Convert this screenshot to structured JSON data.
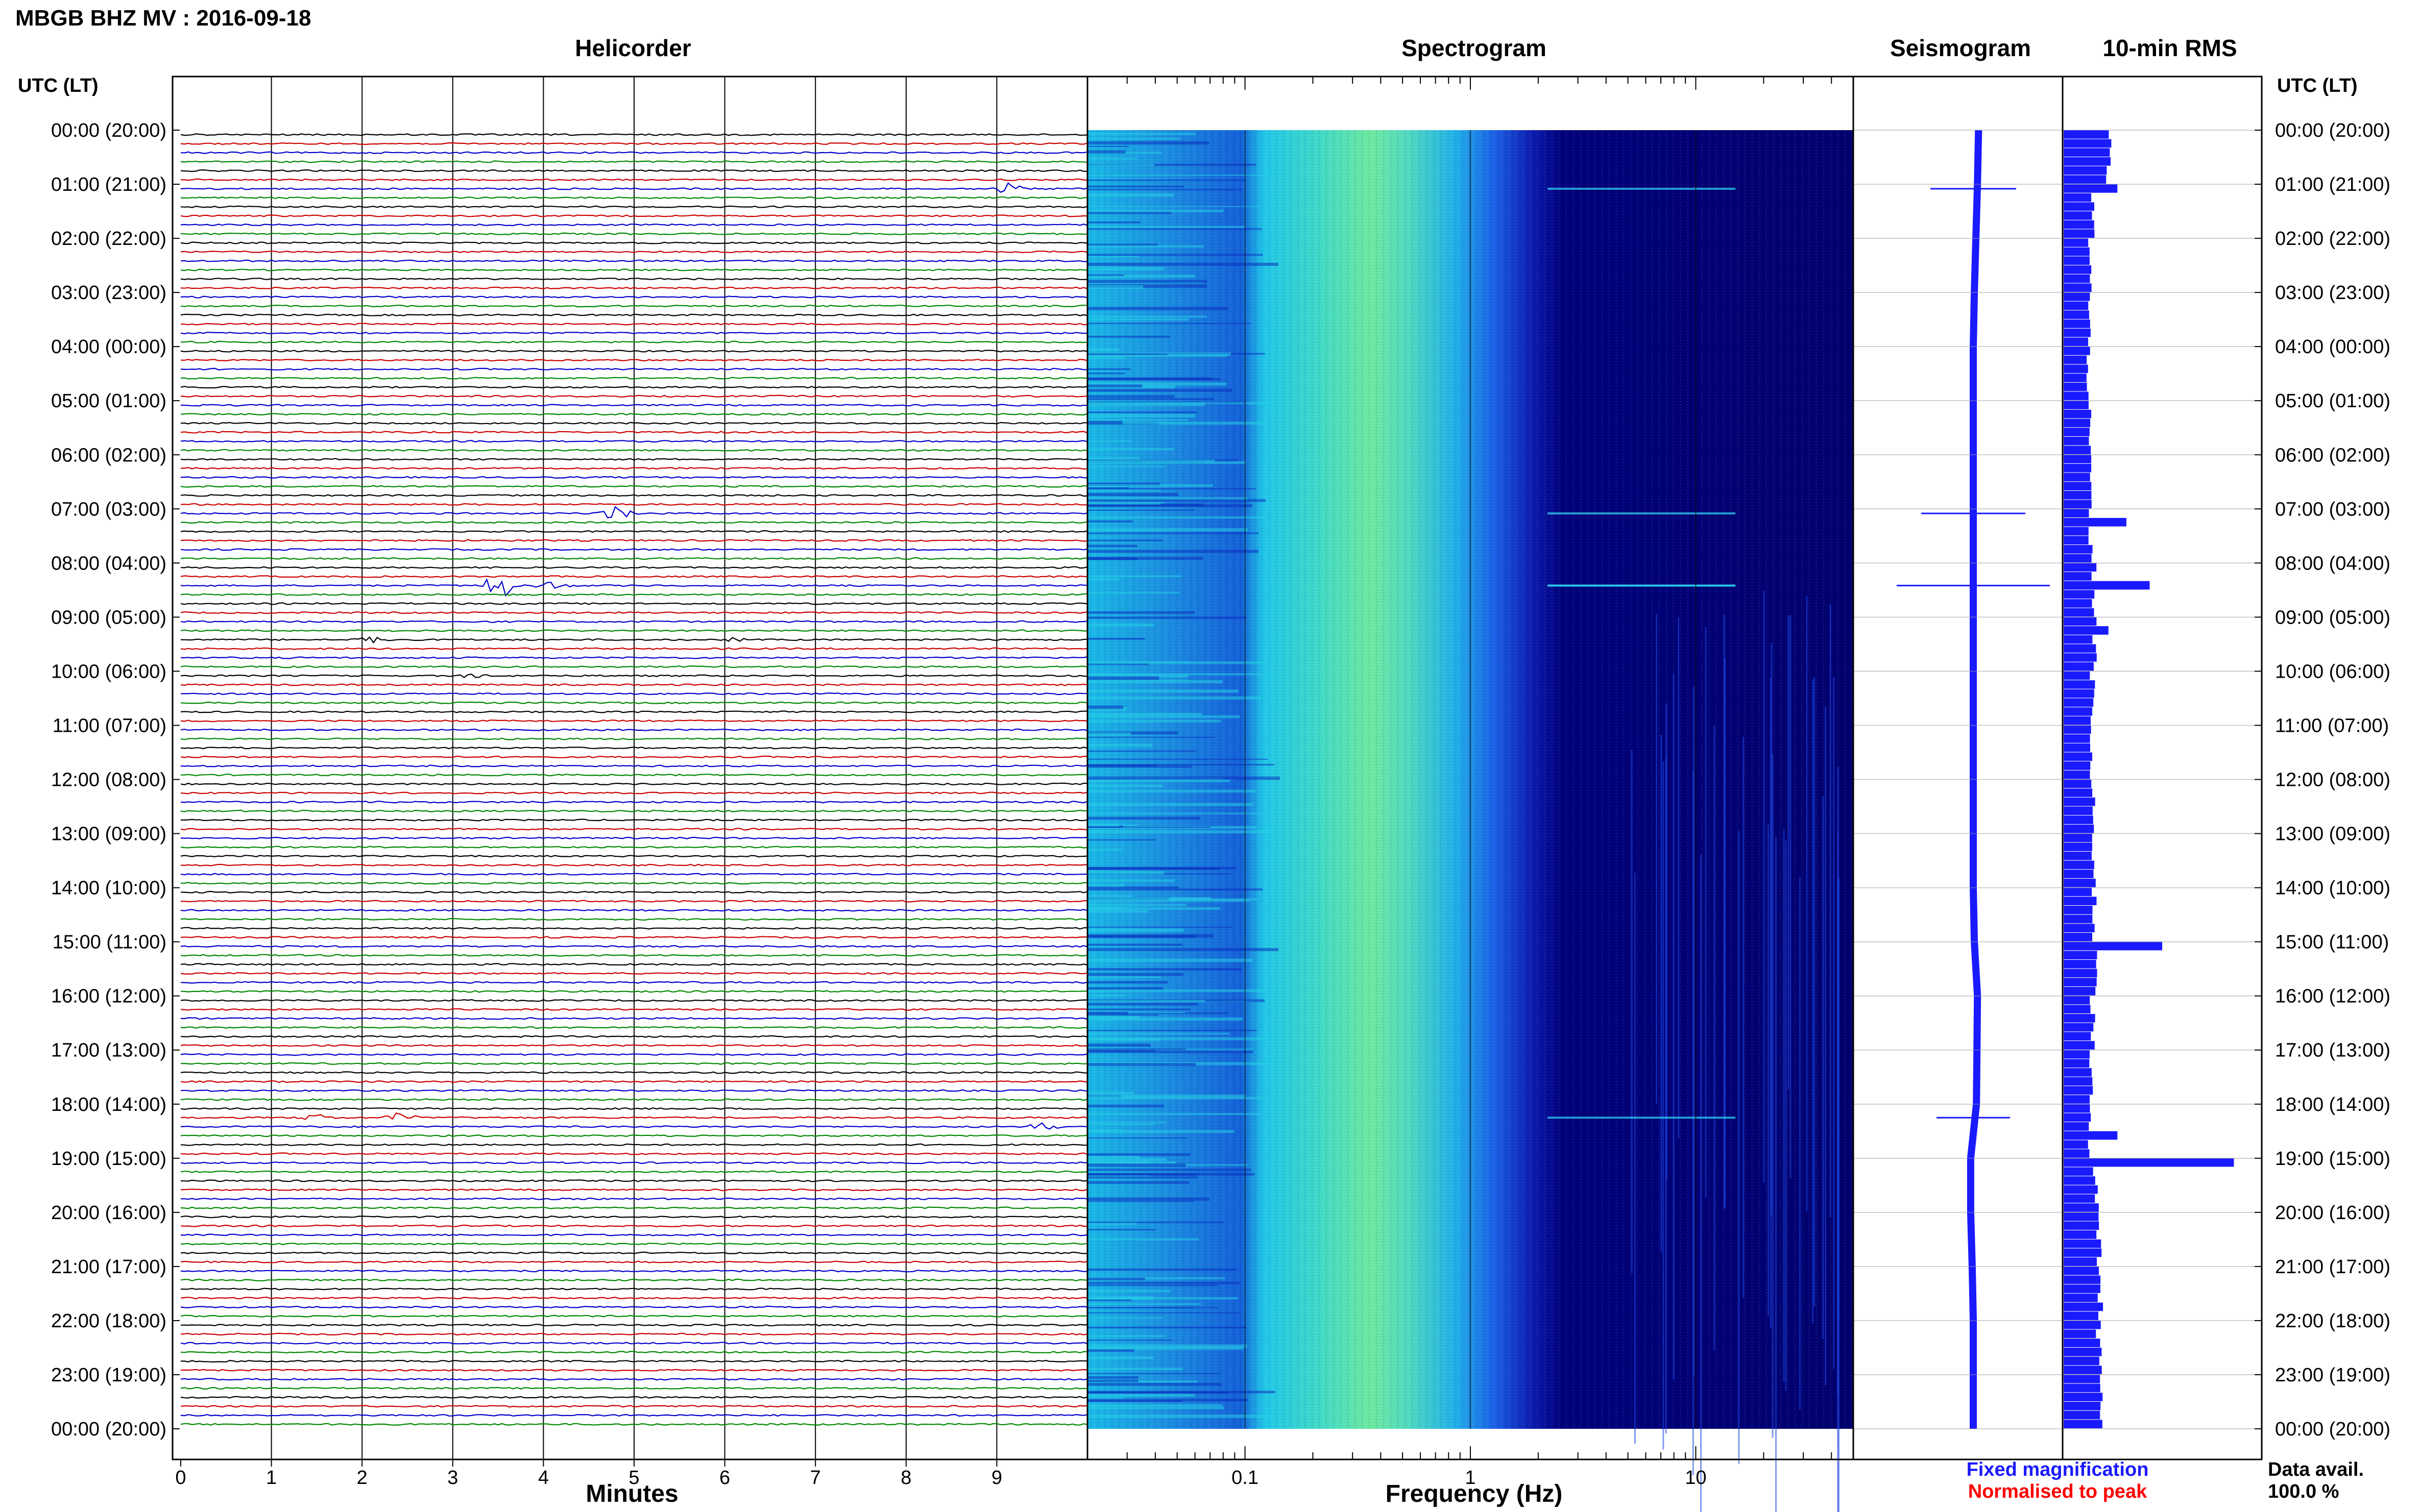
{
  "header": {
    "title": "MBGB BHZ MV : 2016-09-18"
  },
  "colors": {
    "trace_cycle": [
      "#000000",
      "#cc0000",
      "#0000cc",
      "#008800"
    ],
    "fixed_magnification": "#1a1aff",
    "normalised_to_peak": "#ff0000",
    "seismogram_fill": "#1a1aff",
    "rms_fill": "#1a1aff",
    "spectrogram_dark": "#00007a",
    "spectrogram_peak": "#7ef07a"
  },
  "chart_data": [
    {
      "type": "line",
      "panel": "helicorder",
      "title": "Helicorder",
      "xlabel": "Minutes",
      "xlim": [
        0,
        10
      ],
      "xticks": [
        "0",
        "1",
        "2",
        "3",
        "4",
        "5",
        "6",
        "7",
        "8",
        "9"
      ],
      "ylabel": "UTC (LT)",
      "rows_per_hour": 6,
      "y_ticks": [
        "00:00 (20:00)",
        "01:00 (21:00)",
        "02:00 (22:00)",
        "03:00 (23:00)",
        "04:00 (00:00)",
        "05:00 (01:00)",
        "06:00 (02:00)",
        "07:00 (03:00)",
        "08:00 (04:00)",
        "09:00 (05:00)",
        "10:00 (06:00)",
        "11:00 (07:00)",
        "12:00 (08:00)",
        "13:00 (09:00)",
        "14:00 (10:00)",
        "15:00 (11:00)",
        "16:00 (12:00)",
        "17:00 (13:00)",
        "18:00 (14:00)",
        "19:00 (15:00)",
        "20:00 (16:00)",
        "21:00 (17:00)",
        "22:00 (18:00)",
        "23:00 (19:00)",
        "00:00 (20:00)"
      ],
      "events": [
        {
          "row": 6,
          "minute": 9.1,
          "amp": 0.45
        },
        {
          "row": 42,
          "minute": 4.8,
          "amp": 0.6
        },
        {
          "row": 50,
          "minute": 3.5,
          "amp": 1.0
        },
        {
          "row": 50,
          "minute": 4.1,
          "amp": 0.35
        },
        {
          "row": 56,
          "minute": 2.1,
          "amp": 0.3
        },
        {
          "row": 56,
          "minute": 6.1,
          "amp": 0.2
        },
        {
          "row": 60,
          "minute": 3.2,
          "amp": 0.15
        },
        {
          "row": 109,
          "minute": 2.4,
          "amp": 0.35
        },
        {
          "row": 109,
          "minute": 1.5,
          "amp": 0.25
        },
        {
          "row": 110,
          "minute": 9.5,
          "amp": 0.3
        }
      ]
    },
    {
      "type": "heatmap",
      "panel": "spectrogram",
      "title": "Spectrogram",
      "xlabel": "Frequency (Hz)",
      "xscale": "log",
      "xlim": [
        0.02,
        50
      ],
      "xticks": [
        "0.1",
        "1",
        "10"
      ],
      "peak_frequency_hz": 0.45,
      "rolloff_hz": 2.0
    },
    {
      "type": "line",
      "panel": "seismogram",
      "title": "Seismogram",
      "xlim": [
        -1,
        1
      ],
      "offsets": [
        0.1,
        0.08,
        0.05,
        0.02,
        0.0,
        0.0,
        0.0,
        0.0,
        0.0,
        0.0,
        0.0,
        0.0,
        0.0,
        0.0,
        0.0,
        0.02,
        0.08,
        0.07,
        0.06,
        -0.05,
        -0.05,
        -0.02,
        0.0,
        0.0,
        0.0
      ]
    },
    {
      "type": "bar",
      "panel": "rms",
      "title": "10-min RMS",
      "orientation": "horizontal",
      "levels_by_hour": [
        0.25,
        0.16,
        0.15,
        0.14,
        0.14,
        0.14,
        0.15,
        0.15,
        0.17,
        0.17,
        0.16,
        0.15,
        0.16,
        0.17,
        0.17,
        0.19,
        0.16,
        0.15,
        0.15,
        0.18,
        0.2,
        0.2,
        0.2,
        0.2
      ],
      "spikes": [
        {
          "row": 6,
          "value": 0.3
        },
        {
          "row": 43,
          "value": 0.35
        },
        {
          "row": 50,
          "value": 0.48
        },
        {
          "row": 55,
          "value": 0.25
        },
        {
          "row": 90,
          "value": 0.55
        },
        {
          "row": 111,
          "value": 0.3
        },
        {
          "row": 114,
          "value": 0.95
        }
      ]
    }
  ],
  "right_axis": {
    "label": "UTC (LT)"
  },
  "legend": {
    "fixed": "Fixed magnification",
    "normalised": "Normalised to peak",
    "availability_label": "Data avail.",
    "availability_value": "100.0 %"
  }
}
